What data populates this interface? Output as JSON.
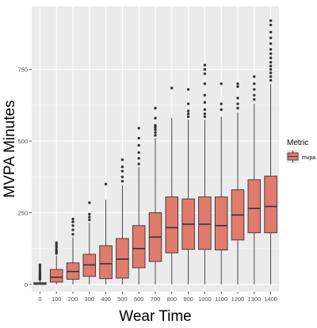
{
  "chart_data": {
    "type": "boxplot",
    "title": "",
    "xlabel": "Wear Time",
    "ylabel": "MVPA Minutes",
    "categories": [
      "0",
      "100",
      "200",
      "300",
      "400",
      "500",
      "600",
      "700",
      "800",
      "900",
      "1000",
      "1100",
      "1200",
      "1300",
      "1400"
    ],
    "y_ticks": [
      0,
      250,
      500,
      750
    ],
    "y_tick_labels": [
      "0",
      "250",
      "500",
      "750"
    ],
    "ylim": [
      -25,
      970
    ],
    "grid": true,
    "legend": {
      "title": "Metric",
      "placement": "right"
    },
    "series": [
      {
        "name": "mvpa",
        "color": "#E07B6E",
        "boxes": [
          {
            "min": 0,
            "q1": 0,
            "median": 2,
            "q3": 6,
            "max": 15,
            "outliers": [
              18,
              22,
              27,
              32,
              38,
              44,
              52,
              60,
              68
            ]
          },
          {
            "min": 0,
            "q1": 8,
            "median": 25,
            "q3": 52,
            "max": 100,
            "outliers": [
              108,
              115,
              122,
              130,
              138,
              145
            ]
          },
          {
            "min": 0,
            "q1": 18,
            "median": 45,
            "q3": 75,
            "max": 165,
            "outliers": [
              175,
              190,
              205,
              218,
              228
            ]
          },
          {
            "min": 0,
            "q1": 28,
            "median": 68,
            "q3": 105,
            "max": 215,
            "outliers": [
              225,
              235,
              245,
              285
            ]
          },
          {
            "min": 0,
            "q1": 20,
            "median": 72,
            "q3": 135,
            "max": 295,
            "outliers": [
              350
            ]
          },
          {
            "min": 0,
            "q1": 22,
            "median": 88,
            "q3": 160,
            "max": 345,
            "outliers": [
              360,
              375,
              395,
              410,
              435
            ]
          },
          {
            "min": 0,
            "q1": 58,
            "median": 125,
            "q3": 205,
            "max": 410,
            "outliers": [
              420,
              440,
              460,
              485,
              510,
              545
            ]
          },
          {
            "min": 0,
            "q1": 80,
            "median": 165,
            "q3": 250,
            "max": 510,
            "outliers": [
              520,
              530,
              540,
              548,
              555,
              580,
              615
            ]
          },
          {
            "min": 0,
            "q1": 110,
            "median": 198,
            "q3": 305,
            "max": 580,
            "outliers": [
              685
            ]
          },
          {
            "min": 0,
            "q1": 122,
            "median": 210,
            "q3": 298,
            "max": 575,
            "outliers": [
              585,
              595,
              605,
              630,
              680
            ]
          },
          {
            "min": 0,
            "q1": 122,
            "median": 210,
            "q3": 305,
            "max": 575,
            "outliers": [
              585,
              595,
              610,
              635,
              660,
              700,
              735,
              750,
              765
            ]
          },
          {
            "min": 0,
            "q1": 120,
            "median": 205,
            "q3": 305,
            "max": 585,
            "outliers": [
              610,
              630,
              700
            ]
          },
          {
            "min": 0,
            "q1": 155,
            "median": 242,
            "q3": 330,
            "max": 600,
            "outliers": [
              615,
              630,
              650,
              690,
              700
            ]
          },
          {
            "min": 0,
            "q1": 180,
            "median": 265,
            "q3": 365,
            "max": 630,
            "outliers": [
              645,
              660,
              680,
              700,
              725
            ]
          },
          {
            "min": 0,
            "q1": 180,
            "median": 272,
            "q3": 378,
            "max": 700,
            "outliers": [
              712,
              725,
              738,
              750,
              762,
              775,
              790,
              805,
              820,
              840,
              860,
              880,
              905,
              920
            ]
          }
        ]
      }
    ]
  }
}
